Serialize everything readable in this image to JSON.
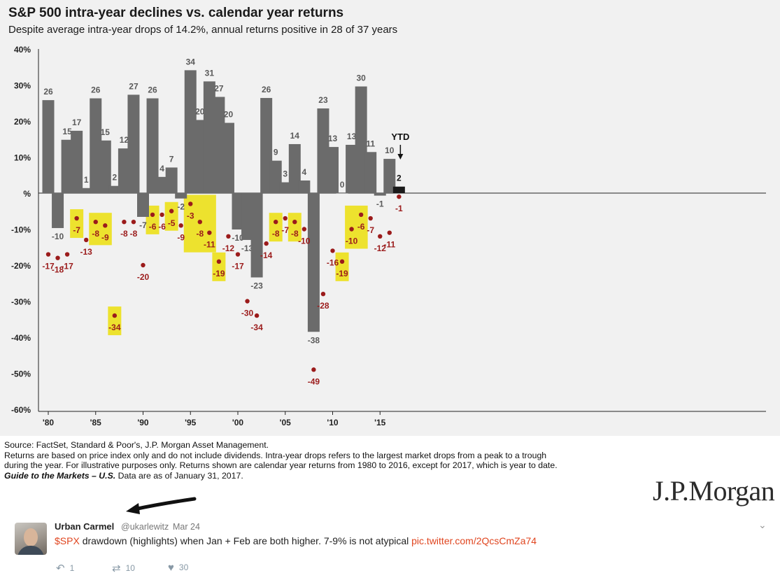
{
  "chart_data": {
    "type": "bar",
    "title": "S&P 500 intra-year declines vs. calendar year returns",
    "subtitle": "Despite average intra-year drops of 14.2%, annual returns positive in 28 of 37 years",
    "x_tick_labels": [
      {
        "year": 1980,
        "label": "'80"
      },
      {
        "year": 1985,
        "label": "'85"
      },
      {
        "year": 1990,
        "label": "'90"
      },
      {
        "year": 1995,
        "label": "'95"
      },
      {
        "year": 2000,
        "label": "'00"
      },
      {
        "year": 2005,
        "label": "'05"
      },
      {
        "year": 2010,
        "label": "'10"
      },
      {
        "year": 2015,
        "label": "'15"
      }
    ],
    "y_ticks": [
      {
        "value": 40,
        "label": "40%"
      },
      {
        "value": 30,
        "label": "30%"
      },
      {
        "value": 20,
        "label": "20%"
      },
      {
        "value": 10,
        "label": "10%"
      },
      {
        "value": 0,
        "label": "%"
      },
      {
        "value": -10,
        "label": "-10%"
      },
      {
        "value": -20,
        "label": "-20%"
      },
      {
        "value": -30,
        "label": "-30%"
      },
      {
        "value": -40,
        "label": "-40%"
      },
      {
        "value": -50,
        "label": "-50%"
      },
      {
        "value": -60,
        "label": "-60%"
      }
    ],
    "ylim": [
      -60,
      40
    ],
    "years": [
      1980,
      1981,
      1982,
      1983,
      1984,
      1985,
      1986,
      1987,
      1988,
      1989,
      1990,
      1991,
      1992,
      1993,
      1994,
      1995,
      1996,
      1997,
      1998,
      1999,
      2000,
      2001,
      2002,
      2003,
      2004,
      2005,
      2006,
      2007,
      2008,
      2009,
      2010,
      2011,
      2012,
      2013,
      2014,
      2015,
      2016,
      2017
    ],
    "series": [
      {
        "name": "calendar year returns",
        "values": [
          25.8,
          -9.7,
          14.8,
          17.3,
          1.4,
          26.3,
          14.6,
          2.0,
          12.4,
          27.3,
          -6.6,
          26.3,
          4.5,
          7.1,
          -1.5,
          34.1,
          20.3,
          31.0,
          26.7,
          19.5,
          -10.1,
          -13.0,
          -23.4,
          26.4,
          9.0,
          3.0,
          13.6,
          3.5,
          -38.5,
          23.5,
          12.8,
          0,
          13.4,
          29.6,
          11.4,
          -0.7,
          9.5,
          1.8
        ],
        "labels": [
          "26",
          "-10",
          "15",
          "17",
          "1",
          "26",
          "15",
          "2",
          "12",
          "27",
          "-7",
          "26",
          "4",
          "7",
          "-2",
          "34",
          "20",
          "31",
          "27",
          "20",
          "-10",
          "-13",
          "-23",
          "26",
          "9",
          "3",
          "14",
          "4",
          "-38",
          "23",
          "13",
          "0",
          "13",
          "30",
          "11",
          "-1",
          "10",
          "2"
        ]
      },
      {
        "name": "intra-year declines",
        "values": [
          -17,
          -18,
          -17,
          -7,
          -13,
          -8,
          -9,
          -34,
          -8,
          -8,
          -20,
          -6,
          -6,
          -5,
          -9,
          -3,
          -8,
          -11,
          -19,
          -12,
          -17,
          -30,
          -34,
          -14,
          -8,
          -7,
          -8,
          -10,
          -49,
          -28,
          -16,
          -19,
          -10,
          -6,
          -7,
          -12,
          -11,
          -1
        ],
        "labels": [
          "-17",
          "-18",
          "-17",
          "-7",
          "-13",
          "-8",
          "-9",
          "-34",
          "-8",
          "-8",
          "-20",
          "-6",
          "-6",
          "-5",
          "-9",
          "-3",
          "-8",
          "-11",
          "-19",
          "-12",
          "-17",
          "-30",
          "-34",
          "-14",
          "-8",
          "-7",
          "-8",
          "-10",
          "-49",
          "-28",
          "-16",
          "-19",
          "-10",
          "-6",
          "-7",
          "-12",
          "-11",
          "-1"
        ]
      }
    ],
    "ytd_label": "YTD",
    "highlighted_years": [
      1983,
      1985,
      1986,
      1987,
      1991,
      1993,
      1995,
      1996,
      1997,
      1998,
      2004,
      2006,
      2011,
      2012,
      2013
    ],
    "colors": {
      "bar": "#6b6b6b",
      "ytd_bar": "#1a1a1a",
      "dot": "#9b1b1b",
      "highlight": "#ede22e",
      "background": "#f1f1f1"
    },
    "grid": false
  },
  "source": {
    "line1": "Source: FactSet, Standard & Poor's, J.P. Morgan Asset Management.",
    "line2": "Returns are based on price index only and do not include dividends. Intra-year drops refers to the largest market drops from a peak to a trough",
    "line3": "during the year. For illustrative purposes only. Returns shown are calendar year returns from 1980 to 2016, except for 2017, which is year to date.",
    "line4_em": "Guide to the Markets – U.S.",
    "line4_rest": " Data are as of January 31, 2017."
  },
  "logo_text": "J.P.Morgan",
  "tweet": {
    "name": "Urban Carmel",
    "handle": "@ukarlewitz",
    "separator": "·",
    "date": "Mar 24",
    "cashtag": "$SPX",
    "body": " drawdown (highlights) when Jan + Feb are both higher. 7-9% is not atypical ",
    "link": "pic.twitter.com/2QcsCmZa74",
    "replies": "1",
    "retweets": "10",
    "likes": "30",
    "colors": {
      "accent": "#e0451f",
      "muted": "#8899a6"
    }
  }
}
